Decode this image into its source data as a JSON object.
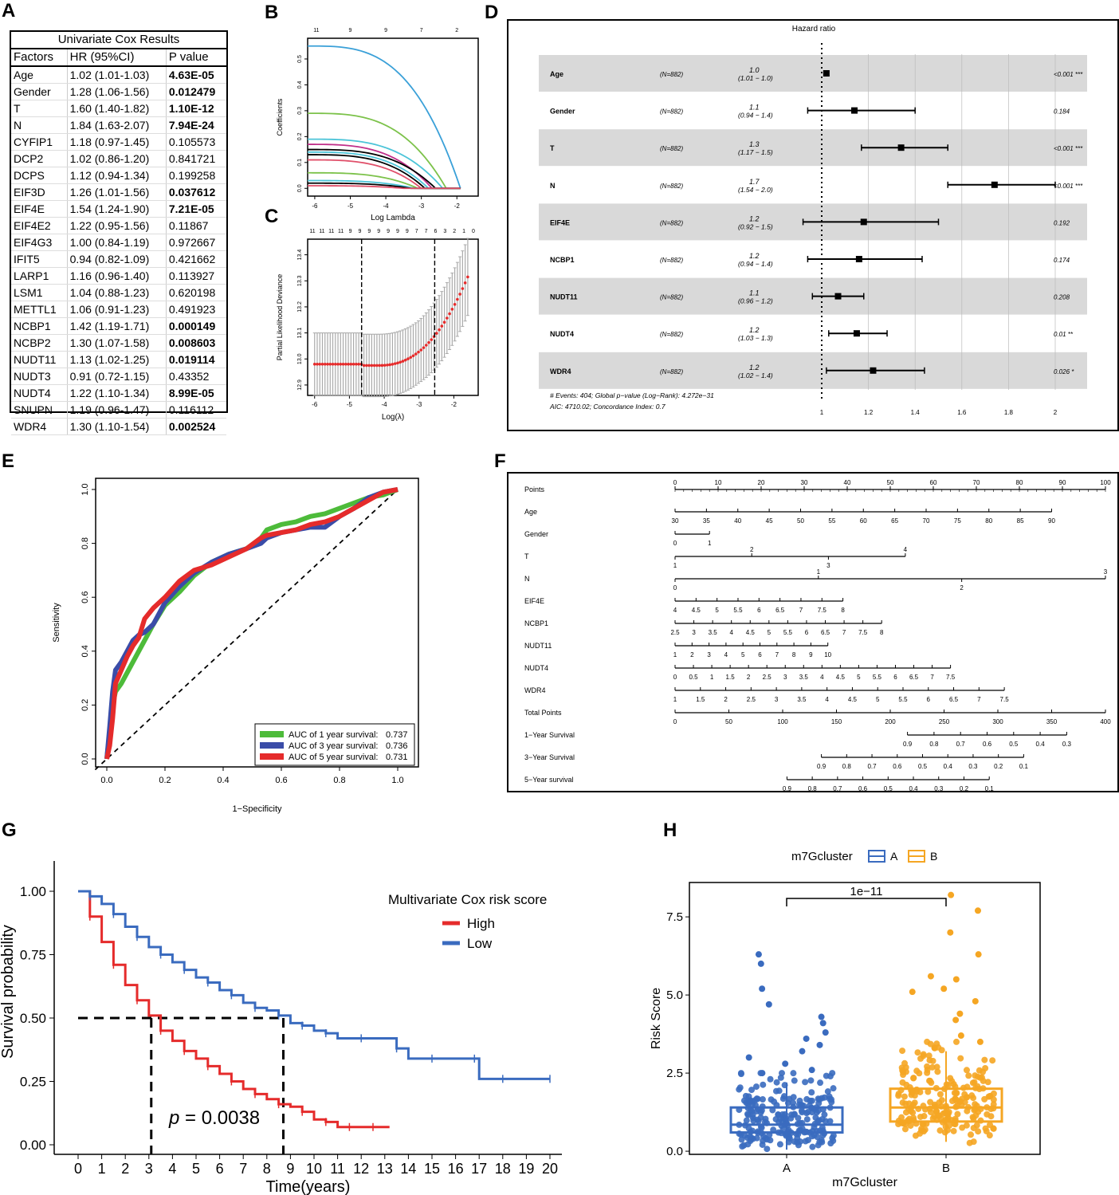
{
  "panel_labels": {
    "a": "A",
    "b": "B",
    "c": "C",
    "d": "D",
    "e": "E",
    "f": "F",
    "g": "G",
    "h": "H"
  },
  "table_a": {
    "title": "Univariate Cox Results",
    "headers": [
      "Factors",
      "HR (95%CI)",
      "P value"
    ],
    "rows": [
      [
        "Age",
        "1.02 (1.01-1.03)",
        "4.63E-05",
        true
      ],
      [
        "Gender",
        "1.28 (1.06-1.56)",
        "0.012479",
        true
      ],
      [
        "T",
        "1.60 (1.40-1.82)",
        "1.10E-12",
        true
      ],
      [
        "N",
        "1.84 (1.63-2.07)",
        "7.94E-24",
        true
      ],
      [
        "CYFIP1",
        "1.18 (0.97-1.45)",
        "0.105573",
        false
      ],
      [
        "DCP2",
        "1.02 (0.86-1.20)",
        "0.841721",
        false
      ],
      [
        "DCPS",
        "1.12 (0.94-1.34)",
        "0.199258",
        false
      ],
      [
        "EIF3D",
        "1.26 (1.01-1.56)",
        "0.037612",
        true
      ],
      [
        "EIF4E",
        "1.54 (1.24-1.90)",
        "7.21E-05",
        true
      ],
      [
        "EIF4E2",
        "1.22 (0.95-1.56)",
        "0.11867",
        false
      ],
      [
        "EIF4G3",
        "1.00 (0.84-1.19)",
        "0.972667",
        false
      ],
      [
        "IFIT5",
        "0.94 (0.82-1.09)",
        "0.421662",
        false
      ],
      [
        "LARP1",
        "1.16 (0.96-1.40)",
        "0.113927",
        false
      ],
      [
        "LSM1",
        "1.04 (0.88-1.23)",
        "0.620198",
        false
      ],
      [
        "METTL1",
        "1.06 (0.91-1.23)",
        "0.491923",
        false
      ],
      [
        "NCBP1",
        "1.42 (1.19-1.71)",
        "0.000149",
        true
      ],
      [
        "NCBP2",
        "1.30 (1.07-1.58)",
        "0.008603",
        true
      ],
      [
        "NUDT11",
        "1.13 (1.02-1.25)",
        "0.019114",
        true
      ],
      [
        "NUDT3",
        "0.91 (0.72-1.15)",
        "0.43352",
        false
      ],
      [
        "NUDT4",
        "1.22 (1.10-1.34)",
        "8.99E-05",
        true
      ],
      [
        "SNUPN",
        "1.19 (0.96-1.47)",
        "0.116112",
        false
      ],
      [
        "WDR4",
        "1.30 (1.10-1.54)",
        "0.002524",
        true
      ]
    ]
  },
  "chart_data": [
    {
      "id": "B",
      "type": "line",
      "xlabel": "Log Lambda",
      "ylabel": "Coefficients",
      "xticks": [
        "-6",
        "-5",
        "-4",
        "-3",
        "-2"
      ],
      "yticks": [
        "0.0",
        "0.1",
        "0.2",
        "0.3",
        "0.4",
        "0.5"
      ],
      "top_ticks": [
        "11",
        "9",
        "9",
        "7",
        "2"
      ],
      "xlim": [
        -6.2,
        -1.4
      ],
      "ylim": [
        -0.03,
        0.58
      ],
      "series": [
        {
          "color": "#3aa0d8",
          "start": 0.55,
          "end_x": -1.9
        },
        {
          "color": "#7cc24a",
          "start": 0.29,
          "end_x": -2.3
        },
        {
          "color": "#4cc4d8",
          "start": 0.19,
          "end_x": -2.4
        },
        {
          "color": "#c0308a",
          "start": 0.17,
          "end_x": -2.7
        },
        {
          "color": "#000000",
          "start": 0.15,
          "end_x": -2.6
        },
        {
          "color": "#4cc4d8",
          "start": 0.14,
          "end_x": -2.8
        },
        {
          "color": "#000000",
          "start": 0.13,
          "end_x": -2.9
        },
        {
          "color": "#e0506a",
          "start": 0.11,
          "end_x": -3.0
        },
        {
          "color": "#7cc24a",
          "start": 0.06,
          "end_x": -3.1
        },
        {
          "color": "#4cc4d8",
          "start": 0.03,
          "end_x": -3.2
        },
        {
          "color": "#000000",
          "start": 0.02,
          "end_x": -3.3
        },
        {
          "color": "#e0506a",
          "start": 0.01,
          "end_x": -3.5
        }
      ]
    },
    {
      "id": "C",
      "type": "scatter",
      "xlabel": "Log(λ)",
      "ylabel": "Partial Likelihood Deviance",
      "xticks": [
        "-6",
        "-5",
        "-4",
        "-3",
        "-2"
      ],
      "yticks": [
        "12.9",
        "13.0",
        "13.1",
        "13.2",
        "13.3",
        "13.4"
      ],
      "top_ticks": [
        "11",
        "11",
        "11",
        "11",
        "9",
        "9",
        "9",
        "9",
        "9",
        "9",
        "9",
        "7",
        "7",
        "6",
        "3",
        "2",
        "1",
        "0"
      ],
      "xlim": [
        -6.2,
        -1.3
      ],
      "ylim": [
        12.86,
        13.46
      ],
      "min_line": -4.65,
      "se_line": -2.55
    },
    {
      "id": "D",
      "type": "forest",
      "title": "Hazard ratio",
      "rows": [
        {
          "name": "Age",
          "n": "(N=882)",
          "hr": "1.0",
          "ci": "(1.01 − 1.0)",
          "p": "<0.001 ***",
          "est": 1.02,
          "lo": 1.01,
          "hi": 1.03
        },
        {
          "name": "Gender",
          "n": "(N=882)",
          "hr": "1.1",
          "ci": "(0.94 − 1.4)",
          "p": "0.184",
          "est": 1.14,
          "lo": 0.94,
          "hi": 1.4
        },
        {
          "name": "T",
          "n": "(N=882)",
          "hr": "1.3",
          "ci": "(1.17 − 1.5)",
          "p": "<0.001 ***",
          "est": 1.34,
          "lo": 1.17,
          "hi": 1.54
        },
        {
          "name": "N",
          "n": "(N=882)",
          "hr": "1.7",
          "ci": "(1.54 − 2.0)",
          "p": "<0.001 ***",
          "est": 1.74,
          "lo": 1.54,
          "hi": 2.0
        },
        {
          "name": "EIF4E",
          "n": "(N=882)",
          "hr": "1.2",
          "ci": "(0.92 − 1.5)",
          "p": "0.192",
          "est": 1.18,
          "lo": 0.92,
          "hi": 1.5
        },
        {
          "name": "NCBP1",
          "n": "(N=882)",
          "hr": "1.2",
          "ci": "(0.94 − 1.4)",
          "p": "0.174",
          "est": 1.16,
          "lo": 0.94,
          "hi": 1.43
        },
        {
          "name": "NUDT11",
          "n": "(N=882)",
          "hr": "1.1",
          "ci": "(0.96 − 1.2)",
          "p": "0.208",
          "est": 1.07,
          "lo": 0.96,
          "hi": 1.18
        },
        {
          "name": "NUDT4",
          "n": "(N=882)",
          "hr": "1.2",
          "ci": "(1.03 − 1.3)",
          "p": "0.01 **",
          "est": 1.15,
          "lo": 1.03,
          "hi": 1.28
        },
        {
          "name": "WDR4",
          "n": "(N=882)",
          "hr": "1.2",
          "ci": "(1.02 − 1.4)",
          "p": "0.026 *",
          "est": 1.22,
          "lo": 1.02,
          "hi": 1.44
        }
      ],
      "axis_ticks": [
        "1",
        "1.2",
        "1.4",
        "1.6",
        "1.8",
        "2"
      ],
      "footer1": "# Events: 404; Global p−value (Log−Rank): 4.272e−31",
      "footer2": "AIC: 4710.02; Concordance Index: 0.7"
    },
    {
      "id": "E",
      "type": "line",
      "xlabel": "1−Specificity",
      "ylabel": "Sensitivity",
      "ticks": [
        "0.0",
        "0.2",
        "0.4",
        "0.6",
        "0.8",
        "1.0"
      ],
      "legend": [
        {
          "label": "AUC of 1 year survival:",
          "value": "0.737",
          "color": "#4dbb3a"
        },
        {
          "label": "AUC of 3 year survival:",
          "value": "0.736",
          "color": "#3a4ca8"
        },
        {
          "label": "AUC of 5 year survival:",
          "value": "0.731",
          "color": "#e52b2b"
        }
      ],
      "series": [
        {
          "color": "#4dbb3a",
          "x": [
            0,
            0.01,
            0.02,
            0.03,
            0.05,
            0.07,
            0.09,
            0.11,
            0.13,
            0.16,
            0.2,
            0.25,
            0.3,
            0.36,
            0.42,
            0.48,
            0.53,
            0.55,
            0.6,
            0.65,
            0.7,
            0.75,
            0.8,
            0.85,
            0.9,
            0.95,
            1
          ],
          "y": [
            0,
            0.1,
            0.2,
            0.25,
            0.28,
            0.32,
            0.36,
            0.4,
            0.44,
            0.5,
            0.57,
            0.62,
            0.68,
            0.73,
            0.76,
            0.78,
            0.82,
            0.85,
            0.87,
            0.88,
            0.9,
            0.91,
            0.93,
            0.95,
            0.97,
            0.98,
            1
          ]
        },
        {
          "color": "#3a4ca8",
          "x": [
            0,
            0.01,
            0.02,
            0.03,
            0.05,
            0.07,
            0.09,
            0.11,
            0.13,
            0.16,
            0.2,
            0.25,
            0.3,
            0.36,
            0.42,
            0.48,
            0.53,
            0.55,
            0.6,
            0.65,
            0.7,
            0.75,
            0.8,
            0.85,
            0.9,
            0.95,
            1
          ],
          "y": [
            0,
            0.12,
            0.25,
            0.33,
            0.36,
            0.4,
            0.44,
            0.46,
            0.47,
            0.5,
            0.58,
            0.64,
            0.69,
            0.73,
            0.76,
            0.78,
            0.8,
            0.82,
            0.84,
            0.85,
            0.86,
            0.86,
            0.9,
            0.93,
            0.97,
            0.99,
            1
          ]
        },
        {
          "color": "#e52b2b",
          "x": [
            0,
            0.01,
            0.02,
            0.03,
            0.05,
            0.07,
            0.09,
            0.11,
            0.13,
            0.16,
            0.2,
            0.25,
            0.3,
            0.36,
            0.42,
            0.48,
            0.53,
            0.55,
            0.6,
            0.65,
            0.7,
            0.75,
            0.8,
            0.85,
            0.9,
            0.95,
            1
          ],
          "y": [
            0,
            0.05,
            0.15,
            0.28,
            0.33,
            0.38,
            0.42,
            0.45,
            0.52,
            0.56,
            0.6,
            0.66,
            0.7,
            0.72,
            0.75,
            0.78,
            0.82,
            0.83,
            0.84,
            0.85,
            0.87,
            0.88,
            0.9,
            0.93,
            0.96,
            0.99,
            1
          ]
        }
      ]
    },
    {
      "id": "F",
      "type": "nomogram",
      "rows": [
        {
          "label": "Points",
          "ticks": [
            "0",
            "10",
            "20",
            "30",
            "40",
            "50",
            "60",
            "70",
            "80",
            "90",
            "100"
          ],
          "start": 0,
          "end": 100
        },
        {
          "label": "Age",
          "ticks": [
            "30",
            "35",
            "40",
            "45",
            "50",
            "55",
            "60",
            "65",
            "70",
            "75",
            "80",
            "85",
            "90"
          ],
          "start": 0,
          "end": 87.5
        },
        {
          "label": "Gender",
          "ticks": [
            "0",
            "1"
          ],
          "start": 0,
          "end": 8
        },
        {
          "label": "T",
          "ticks_above": [
            "2",
            "4"
          ],
          "ticks_below": [
            "1",
            "3"
          ],
          "start": 0,
          "end": 53.5
        },
        {
          "label": "N",
          "ticks_above": [
            "1",
            "3"
          ],
          "ticks_below": [
            "0",
            "2"
          ],
          "start": 0,
          "end": 100
        },
        {
          "label": "EIF4E",
          "ticks": [
            "4",
            "4.5",
            "5",
            "5.5",
            "6",
            "6.5",
            "7",
            "7.5",
            "8"
          ],
          "start": 0,
          "end": 39
        },
        {
          "label": "NCBP1",
          "ticks": [
            "2.5",
            "3",
            "3.5",
            "4",
            "4.5",
            "5",
            "5.5",
            "6",
            "6.5",
            "7",
            "7.5",
            "8"
          ],
          "start": 0,
          "end": 48
        },
        {
          "label": "NUDT11",
          "ticks": [
            "1",
            "2",
            "3",
            "4",
            "5",
            "6",
            "7",
            "8",
            "9",
            "10"
          ],
          "start": 0,
          "end": 35.5
        },
        {
          "label": "NUDT4",
          "ticks": [
            "0",
            "0.5",
            "1",
            "1.5",
            "2",
            "2.5",
            "3",
            "3.5",
            "4",
            "4.5",
            "5",
            "5.5",
            "6",
            "6.5",
            "7",
            "7.5"
          ],
          "start": 0,
          "end": 64
        },
        {
          "label": "WDR4",
          "ticks": [
            "1",
            "1.5",
            "2",
            "2.5",
            "3",
            "3.5",
            "4",
            "4.5",
            "5",
            "5.5",
            "6",
            "6.5",
            "7",
            "7.5"
          ],
          "start": 0,
          "end": 76.5
        },
        {
          "label": "Total Points",
          "ticks": [
            "0",
            "50",
            "100",
            "150",
            "200",
            "250",
            "300",
            "350",
            "400"
          ],
          "start": 0,
          "end": 100
        },
        {
          "label": "1−Year Survival",
          "ticks": [
            "0.9",
            "0.8",
            "0.7",
            "0.6",
            "0.5",
            "0.4",
            "0.3"
          ],
          "start": 54,
          "end": 91
        },
        {
          "label": "3−Year Survival",
          "ticks": [
            "0.9",
            "0.8",
            "0.7",
            "0.6",
            "0.5",
            "0.4",
            "0.3",
            "0.2",
            "0.1"
          ],
          "start": 34,
          "end": 81
        },
        {
          "label": "5−Year survival",
          "ticks": [
            "0.9",
            "0.8",
            "0.7",
            "0.6",
            "0.5",
            "0.4",
            "0.3",
            "0.2",
            "0.1"
          ],
          "start": 26,
          "end": 73
        }
      ]
    },
    {
      "id": "G",
      "type": "line",
      "xlabel": "Time(years)",
      "ylabel": "Survival probability",
      "xticks": [
        "0",
        "1",
        "2",
        "3",
        "4",
        "5",
        "6",
        "7",
        "8",
        "9",
        "10",
        "11",
        "12",
        "13",
        "14",
        "15",
        "16",
        "17",
        "18",
        "19",
        "20"
      ],
      "yticks": [
        "0.00",
        "0.25",
        "0.50",
        "0.75",
        "1.00"
      ],
      "legend_title": "Multivariate Cox risk score",
      "pvalue_label": "p",
      "pvalue_text": " = 0.0038",
      "median_high": 3.1,
      "median_low": 8.7,
      "series": [
        {
          "name": "High",
          "color": "#e52b2b",
          "x": [
            0,
            0.5,
            1,
            1.5,
            2,
            2.5,
            3,
            3.5,
            4,
            4.5,
            5,
            5.5,
            6,
            6.5,
            7,
            7.5,
            8,
            8.5,
            9,
            9.5,
            10,
            10.5,
            11,
            11.5,
            12,
            12.5,
            13.2
          ],
          "y": [
            1,
            0.9,
            0.8,
            0.71,
            0.63,
            0.57,
            0.51,
            0.45,
            0.41,
            0.37,
            0.34,
            0.31,
            0.28,
            0.25,
            0.22,
            0.2,
            0.18,
            0.16,
            0.15,
            0.13,
            0.1,
            0.09,
            0.07,
            0.07,
            0.07,
            0.07,
            0.07
          ]
        },
        {
          "name": "Low",
          "color": "#3a6bbf",
          "x": [
            0,
            0.5,
            1,
            1.5,
            2,
            2.5,
            3,
            3.5,
            4,
            4.5,
            5,
            5.5,
            6,
            6.5,
            7,
            7.5,
            8,
            8.5,
            9,
            9.5,
            10,
            10.5,
            11,
            12,
            13,
            13.5,
            14,
            15,
            16,
            16.8,
            17,
            18,
            19,
            20
          ],
          "y": [
            1,
            0.98,
            0.95,
            0.91,
            0.86,
            0.82,
            0.78,
            0.75,
            0.72,
            0.69,
            0.66,
            0.64,
            0.61,
            0.59,
            0.56,
            0.54,
            0.53,
            0.51,
            0.48,
            0.47,
            0.45,
            0.44,
            0.42,
            0.42,
            0.42,
            0.38,
            0.34,
            0.34,
            0.34,
            0.34,
            0.26,
            0.26,
            0.26,
            0.26
          ]
        }
      ]
    },
    {
      "id": "H",
      "type": "box",
      "legend_title": "m7Gcluster",
      "xlabel": "m7Gcluster",
      "ylabel": "Risk Score",
      "categories": [
        "A",
        "B"
      ],
      "colors": [
        "#3a6bbf",
        "#f5a623"
      ],
      "yticks": [
        "0.0",
        "2.5",
        "5.0",
        "7.5"
      ],
      "ylim": [
        -0.1,
        8.6
      ],
      "boxes": [
        {
          "q1": 0.6,
          "median": 0.85,
          "q3": 1.4,
          "lo": 0.05,
          "hi": 2.2
        },
        {
          "q1": 0.95,
          "median": 1.4,
          "q3": 2.0,
          "lo": 0.3,
          "hi": 3.2
        }
      ],
      "outliers_a": [
        6.3,
        6.0,
        5.2,
        4.7,
        4.3,
        4.1,
        3.8,
        3.6,
        3.4,
        3.2,
        3.0,
        2.8,
        2.6,
        2.5
      ],
      "outliers_b": [
        8.2,
        7.7,
        7.0,
        6.3,
        5.6,
        5.5,
        5.2,
        5.1,
        4.8,
        4.4,
        4.2,
        3.7,
        3.5,
        3.3
      ],
      "significance": "1e−11"
    }
  ]
}
